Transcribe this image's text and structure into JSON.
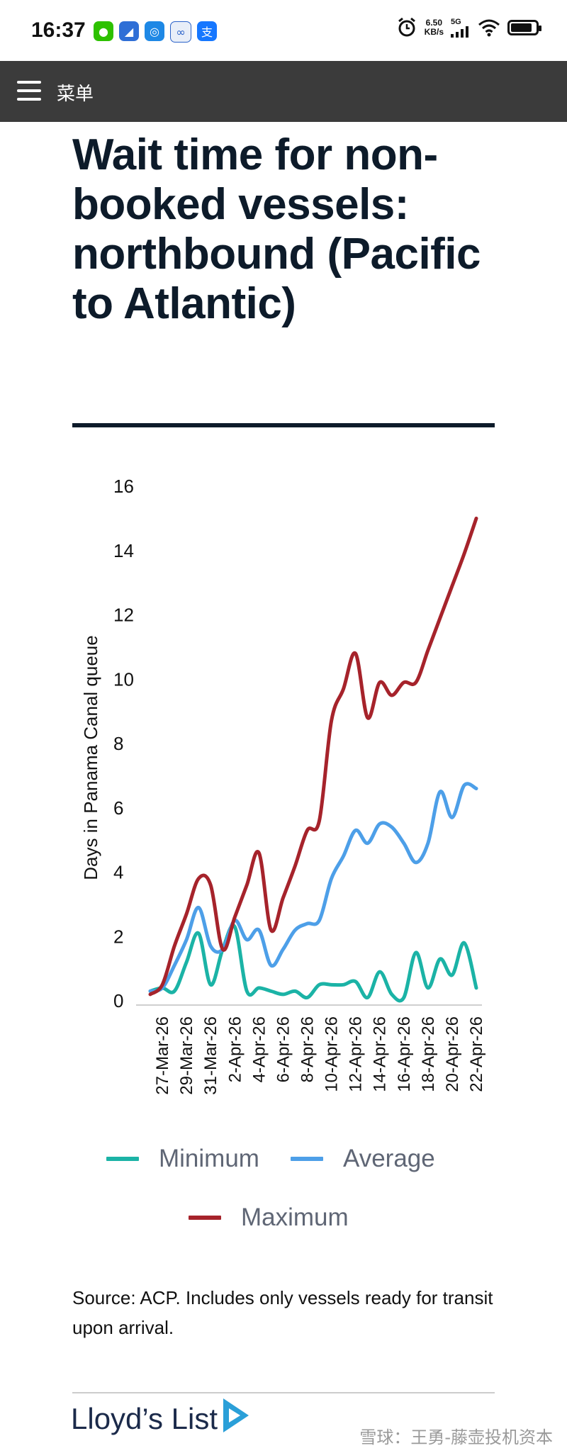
{
  "status_bar": {
    "time": "16:37",
    "net_speed_value": "6.50",
    "net_speed_unit": "KB/s",
    "network": "5G",
    "battery_percent": 85,
    "icons": [
      "wechat-icon",
      "chart-app-icon",
      "browser-icon",
      "sync-icon",
      "alipay-icon",
      "alarm-icon",
      "signal-icon",
      "wifi-icon",
      "battery-icon"
    ]
  },
  "menu": {
    "label": "菜单"
  },
  "title": "Wait time for non-booked vessels: northbound (Pacific to Atlantic)",
  "chart_data": {
    "type": "line",
    "title": "",
    "xlabel": "",
    "ylabel": "Days in Panama Canal queue",
    "ylim": [
      0,
      16
    ],
    "yticks": [
      0,
      2,
      4,
      6,
      8,
      10,
      12,
      14,
      16
    ],
    "x_tick_labels": [
      "27-Mar-26",
      "29-Mar-26",
      "31-Mar-26",
      "2-Apr-26",
      "4-Apr-26",
      "6-Apr-26",
      "8-Apr-26",
      "10-Apr-26",
      "12-Apr-26",
      "14-Apr-26",
      "16-Apr-26",
      "18-Apr-26",
      "20-Apr-26",
      "22-Apr-26"
    ],
    "x": [
      "26-Mar-26",
      "27-Mar-26",
      "28-Mar-26",
      "29-Mar-26",
      "30-Mar-26",
      "31-Mar-26",
      "1-Apr-26",
      "2-Apr-26",
      "3-Apr-26",
      "4-Apr-26",
      "5-Apr-26",
      "6-Apr-26",
      "7-Apr-26",
      "8-Apr-26",
      "9-Apr-26",
      "10-Apr-26",
      "11-Apr-26",
      "12-Apr-26",
      "13-Apr-26",
      "14-Apr-26",
      "15-Apr-26",
      "16-Apr-26",
      "17-Apr-26",
      "18-Apr-26",
      "19-Apr-26",
      "20-Apr-26",
      "21-Apr-26",
      "22-Apr-26"
    ],
    "grid": false,
    "legend_position": "bottom",
    "series": [
      {
        "name": "Minimum",
        "color": "#1bb3a6",
        "values": [
          0.3,
          0.4,
          0.3,
          1.2,
          2.1,
          0.5,
          1.6,
          2.3,
          0.3,
          0.4,
          0.3,
          0.2,
          0.3,
          0.1,
          0.5,
          0.5,
          0.5,
          0.6,
          0.1,
          0.9,
          0.2,
          0.1,
          1.5,
          0.4,
          1.3,
          0.8,
          1.8,
          0.4
        ]
      },
      {
        "name": "Average",
        "color": "#4d9fe8",
        "values": [
          0.3,
          0.4,
          1.1,
          1.9,
          2.9,
          1.7,
          1.6,
          2.5,
          1.9,
          2.2,
          1.1,
          1.6,
          2.2,
          2.4,
          2.5,
          3.8,
          4.5,
          5.3,
          4.9,
          5.5,
          5.4,
          4.9,
          4.3,
          4.9,
          6.5,
          5.7,
          6.7,
          6.6
        ]
      },
      {
        "name": "Maximum",
        "color": "#a6232b",
        "values": [
          0.2,
          0.5,
          1.7,
          2.7,
          3.8,
          3.6,
          1.6,
          2.6,
          3.6,
          4.6,
          2.2,
          3.2,
          4.2,
          5.3,
          5.6,
          8.7,
          9.7,
          10.8,
          8.8,
          9.9,
          9.5,
          9.9,
          9.9,
          10.9,
          11.9,
          12.9,
          13.9,
          15.0
        ]
      }
    ]
  },
  "legend": {
    "minimum": "Minimum",
    "average": "Average",
    "maximum": "Maximum"
  },
  "source_note": "Source: ACP. Includes only vessels ready for transit upon arrival.",
  "logo": {
    "text": "Lloyd’s List"
  },
  "watermark": "雪球：王勇-藤壶投机资本"
}
